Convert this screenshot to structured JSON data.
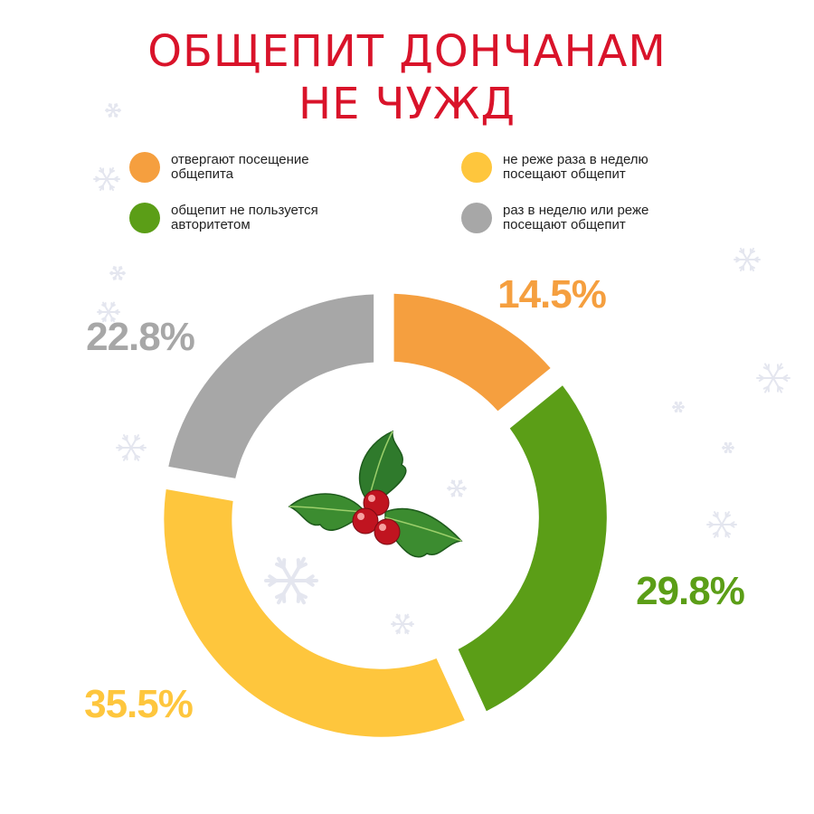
{
  "title": {
    "line1": "ОБЩЕПИТ ДОНЧАНАМ",
    "line2": "НЕ ЧУЖД"
  },
  "legend": [
    {
      "label": "отвергают посещение\nобщепита",
      "color": "#f59f3f"
    },
    {
      "label": "общепит не пользуется\nавторитетом",
      "color": "#5b9e17"
    },
    {
      "label": "не реже раза в неделю\nпосещают общепит",
      "color": "#fec63d"
    },
    {
      "label": "раз в неделю или реже\nпосещают общепит",
      "color": "#a7a7a7"
    }
  ],
  "center_icon": "holly-icon",
  "chart_data": {
    "type": "pie",
    "style": "donut",
    "slices": [
      {
        "label": "отвергают посещение общепита",
        "value": 14.5,
        "value_label": "14.5%",
        "color": "#f59f3f"
      },
      {
        "label": "общепит не пользуется авторитетом",
        "value": 29.8,
        "value_label": "29.8%",
        "color": "#5b9e17"
      },
      {
        "label": "не реже раза в неделю посещают общепит",
        "value": 35.5,
        "value_label": "35.5%",
        "color": "#fec63d"
      },
      {
        "label": "раз в неделю или реже посещают общепит",
        "value": 22.8,
        "value_label": "22.8%",
        "color": "#a7a7a7"
      }
    ],
    "legend_position": "top"
  }
}
